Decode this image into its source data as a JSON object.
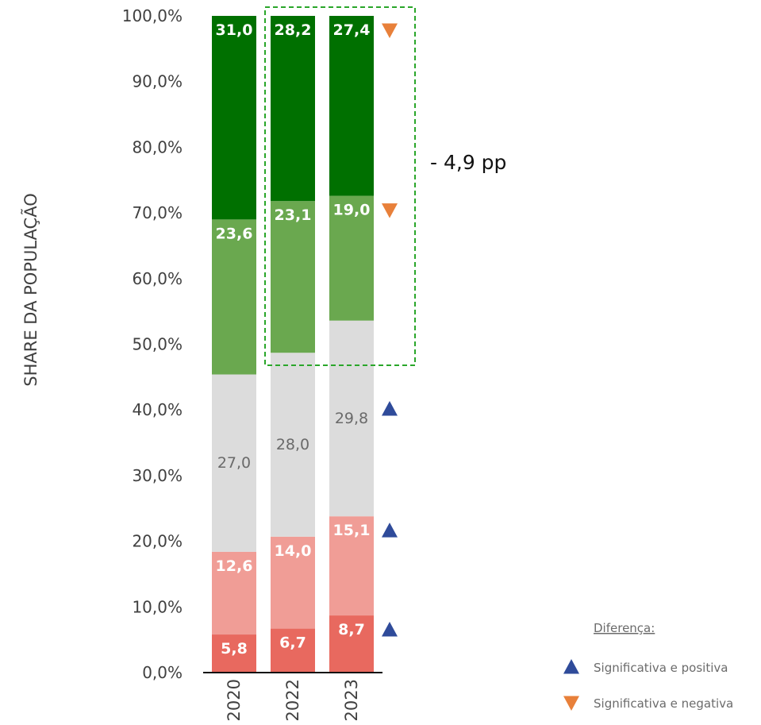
{
  "chart_data": {
    "type": "bar",
    "stacked": true,
    "ylabel": "SHARE DA POPULAÇÃO",
    "ylim": [
      0,
      100
    ],
    "y_ticks": [
      "0,0%",
      "10,0%",
      "20,0%",
      "30,0%",
      "40,0%",
      "50,0%",
      "60,0%",
      "70,0%",
      "80,0%",
      "90,0%",
      "100,0%"
    ],
    "categories": [
      "2020",
      "2022",
      "2023"
    ],
    "series": [
      {
        "values": [
          5.8,
          6.7,
          8.7
        ],
        "labels": [
          "5,8",
          "6,7",
          "8,7"
        ],
        "color": "#e8695f",
        "label_color": "#ffffff"
      },
      {
        "values": [
          12.6,
          14.0,
          15.1
        ],
        "labels": [
          "12,6",
          "14,0",
          "15,1"
        ],
        "color": "#f09d96",
        "label_color": "#ffffff"
      },
      {
        "values": [
          27.0,
          28.0,
          29.8
        ],
        "labels": [
          "27,0",
          "28,0",
          "29,8"
        ],
        "color": "#dcdcdc",
        "label_color": "#6a6a6a"
      },
      {
        "values": [
          23.6,
          23.1,
          19.0
        ],
        "labels": [
          "23,6",
          "23,1",
          "19,0"
        ],
        "color": "#6aa84f",
        "label_color": "#ffffff"
      },
      {
        "values": [
          31.0,
          28.2,
          27.4
        ],
        "labels": [
          "31,0",
          "28,2",
          "27,4"
        ],
        "color": "#007000",
        "label_color": "#ffffff"
      }
    ],
    "markers": [
      {
        "series": 0,
        "type": "up"
      },
      {
        "series": 1,
        "type": "up"
      },
      {
        "series": 2,
        "type": "up"
      },
      {
        "series": 3,
        "type": "down"
      },
      {
        "series": 4,
        "type": "down"
      }
    ],
    "annotation": {
      "text": "- 4,9 pp"
    },
    "legend": {
      "title": "Diferença:",
      "items": [
        {
          "type": "up",
          "label": "Significativa e positiva"
        },
        {
          "type": "down",
          "label": "Significativa e negativa"
        }
      ],
      "position": "bottom-right"
    },
    "colors": {
      "up": "#2f4b9a",
      "down": "#e8803a",
      "highlight_box": "#2aa62a"
    }
  }
}
